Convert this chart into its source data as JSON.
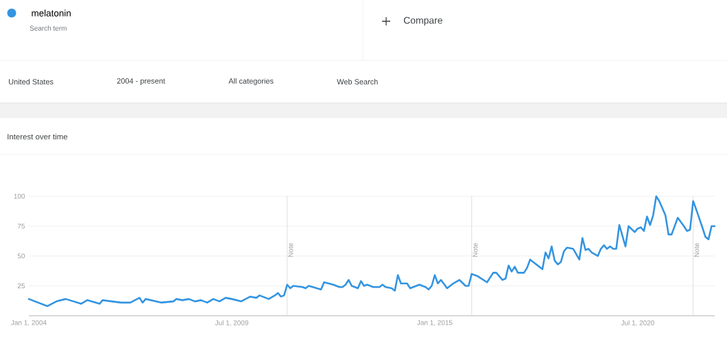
{
  "chart_data": {
    "type": "line",
    "title": "Interest over time",
    "annotations": [
      "Search term",
      "Compare",
      "United States",
      "2004 - present",
      "All categories",
      "Web Search"
    ],
    "x": [
      "2004-01",
      "2004-05",
      "2004-07",
      "2004-10",
      "2005-01",
      "2005-06",
      "2005-08",
      "2005-12",
      "2006-01",
      "2006-07",
      "2006-10",
      "2007-01",
      "2007-02",
      "2007-03",
      "2007-08",
      "2007-12",
      "2008-01",
      "2008-03",
      "2008-05",
      "2008-07",
      "2008-09",
      "2008-11",
      "2009-01",
      "2009-03",
      "2009-05",
      "2009-07",
      "2009-10",
      "2010-01",
      "2010-03",
      "2010-04",
      "2010-07",
      "2010-09",
      "2010-10",
      "2010-11",
      "2010-12",
      "2011-01",
      "2011-02",
      "2011-03",
      "2011-06",
      "2011-07",
      "2011-08",
      "2011-12",
      "2012-01",
      "2012-04",
      "2012-06",
      "2012-07",
      "2012-08",
      "2012-09",
      "2012-10",
      "2012-12",
      "2013-01",
      "2013-02",
      "2013-03",
      "2013-05",
      "2013-07",
      "2013-08",
      "2013-09",
      "2013-11",
      "2013-12",
      "2014-01",
      "2014-02",
      "2014-04",
      "2014-05",
      "2014-08",
      "2014-10",
      "2014-11",
      "2014-12",
      "2015-01",
      "2015-02",
      "2015-03",
      "2015-05",
      "2015-07",
      "2015-09",
      "2015-11",
      "2015-12",
      "2016-01",
      "2016-03",
      "2016-06",
      "2016-08",
      "2016-09",
      "2016-11",
      "2016-12",
      "2017-01",
      "2017-02",
      "2017-03",
      "2017-04",
      "2017-06",
      "2017-07",
      "2017-08",
      "2017-10",
      "2017-12",
      "2018-01",
      "2018-02",
      "2018-03",
      "2018-04",
      "2018-05",
      "2018-06",
      "2018-07",
      "2018-08",
      "2018-10",
      "2018-12",
      "2019-01",
      "2019-02",
      "2019-03",
      "2019-04",
      "2019-06",
      "2019-07",
      "2019-08",
      "2019-09",
      "2019-10",
      "2019-11",
      "2019-12",
      "2020-01",
      "2020-03",
      "2020-04",
      "2020-06",
      "2020-07",
      "2020-08",
      "2020-09",
      "2020-10",
      "2020-11",
      "2020-12",
      "2021-01",
      "2021-02",
      "2021-04",
      "2021-05",
      "2021-06",
      "2021-08",
      "2021-10",
      "2021-11",
      "2021-12",
      "2022-01",
      "2022-02",
      "2022-04",
      "2022-05",
      "2022-06",
      "2022-07",
      "2022-08"
    ],
    "series": [
      {
        "name": "melatonin",
        "color": "#3394e1",
        "values": [
          14,
          10,
          8,
          12,
          14,
          10,
          13,
          10,
          13,
          11,
          11,
          15,
          11,
          14,
          11,
          12,
          14,
          13,
          14,
          12,
          13,
          11,
          14,
          12,
          15,
          14,
          12,
          16,
          15,
          17,
          14,
          17,
          19,
          16,
          17,
          26,
          23,
          25,
          24,
          23,
          25,
          22,
          28,
          26,
          24,
          24,
          26,
          30,
          25,
          23,
          29,
          25,
          26,
          24,
          24,
          26,
          24,
          23,
          21,
          34,
          27,
          27,
          23,
          26,
          24,
          22,
          25,
          34,
          27,
          30,
          23,
          27,
          30,
          25,
          25,
          35,
          33,
          28,
          36,
          36,
          30,
          31,
          42,
          37,
          41,
          36,
          36,
          40,
          47,
          43,
          39,
          53,
          48,
          58,
          46,
          43,
          45,
          54,
          57,
          56,
          47,
          65,
          55,
          56,
          53,
          50,
          56,
          59,
          56,
          58,
          56,
          56,
          76,
          58,
          75,
          70,
          73,
          74,
          71,
          83,
          76,
          84,
          100,
          96,
          84,
          68,
          68,
          82,
          75,
          71,
          72,
          96,
          89,
          74,
          66,
          64,
          75,
          75
        ]
      }
    ],
    "xlim": [
      "2004-01-01",
      "2022-08-01"
    ],
    "xticks": [
      {
        "value": "2004-01-01",
        "label": "Jan 1, 2004"
      },
      {
        "value": "2009-07-01",
        "label": "Jul 1, 2009"
      },
      {
        "value": "2015-01-01",
        "label": "Jan 1, 2015"
      },
      {
        "value": "2020-07-01",
        "label": "Jul 1, 2020"
      }
    ],
    "ylim": [
      0,
      100
    ],
    "yticks": [
      25,
      50,
      75,
      100
    ],
    "grid": "y",
    "legend": "top left",
    "marker": "none",
    "line_style": "solid",
    "ref_lines": [
      {
        "axis": "x",
        "value": "2011-01-01",
        "label": "Note",
        "color": "#d6d6d6"
      },
      {
        "axis": "x",
        "value": "2016-01-01",
        "label": "Note",
        "color": "#d6d6d6"
      },
      {
        "axis": "x",
        "value": "2022-01-01",
        "label": "Note",
        "color": "#d6d6d6"
      }
    ]
  }
}
